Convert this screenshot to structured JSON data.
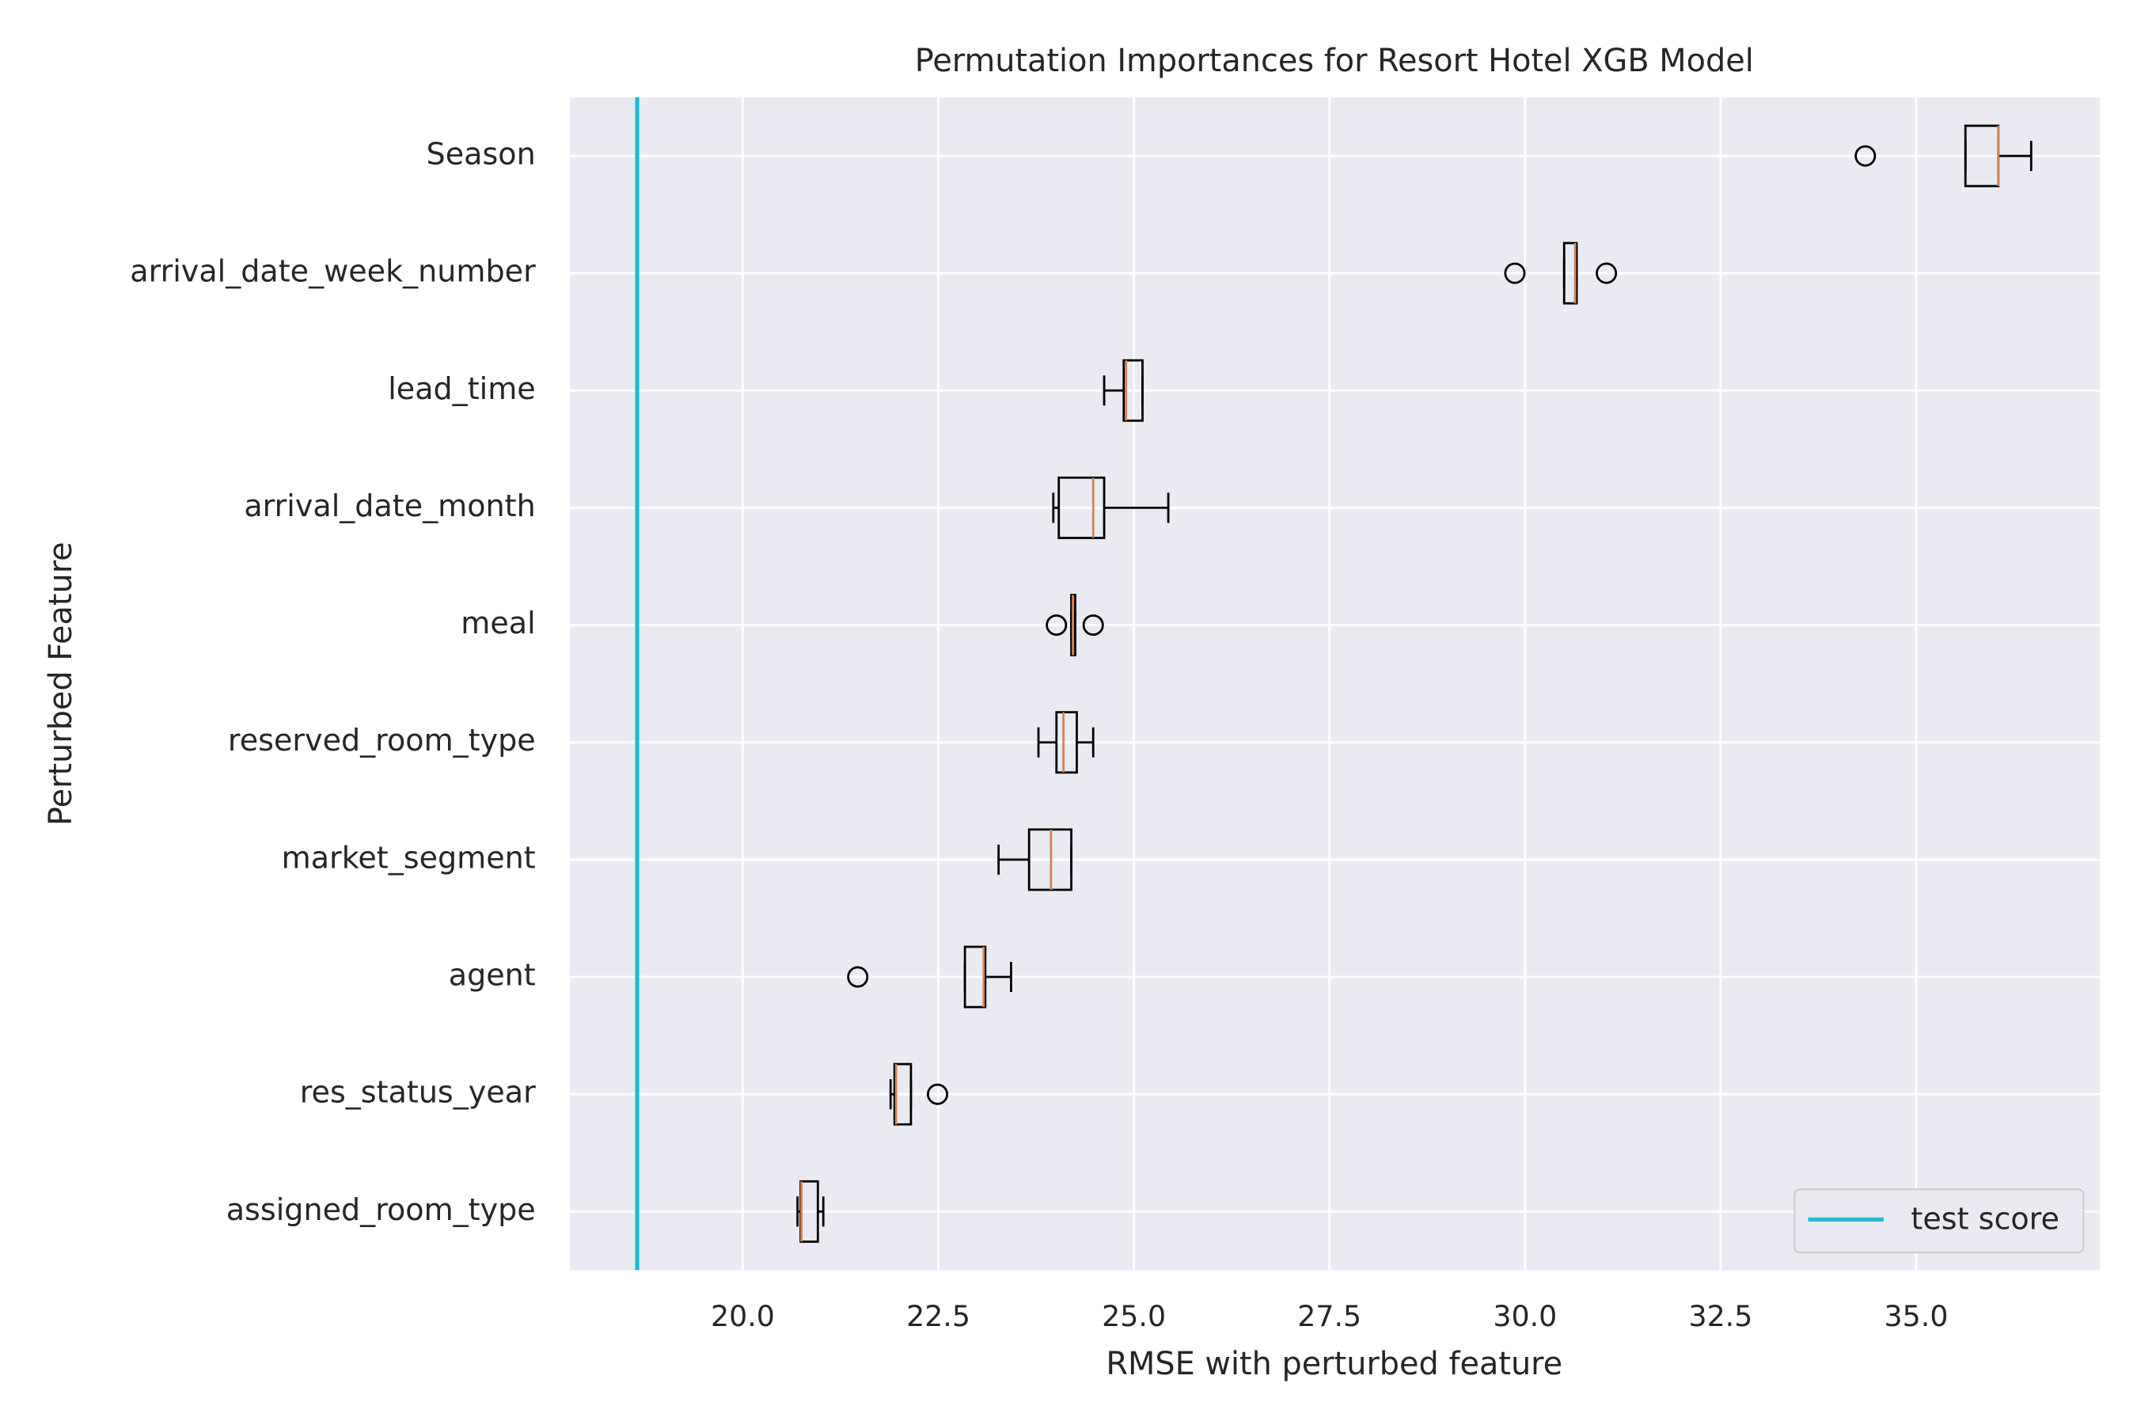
{
  "chart_data": {
    "type": "boxplot",
    "orientation": "horizontal",
    "title": "Permutation Importances for Resort Hotel XGB Model",
    "xlabel": "RMSE with perturbed feature",
    "ylabel": "Perturbed Feature",
    "categories": [
      "Season",
      "arrival_date_week_number",
      "lead_time",
      "arrival_date_month",
      "meal",
      "reserved_room_type",
      "market_segment",
      "agent",
      "res_status_year",
      "assigned_room_type"
    ],
    "boxes": [
      {
        "whislo": 35.63,
        "q1": 35.63,
        "med": 36.05,
        "q3": 36.05,
        "whishi": 36.47,
        "fliers": [
          34.35
        ]
      },
      {
        "whislo": 30.5,
        "q1": 30.5,
        "med": 30.64,
        "q3": 30.66,
        "whishi": 30.66,
        "fliers": [
          29.87,
          31.04
        ]
      },
      {
        "whislo": 24.62,
        "q1": 24.87,
        "med": 24.9,
        "q3": 25.11,
        "whishi": 25.11,
        "fliers": []
      },
      {
        "whislo": 23.97,
        "q1": 24.04,
        "med": 24.48,
        "q3": 24.62,
        "whishi": 25.44,
        "fliers": []
      },
      {
        "whislo": 24.2,
        "q1": 24.2,
        "med": 24.22,
        "q3": 24.25,
        "whishi": 24.25,
        "fliers": [
          24.01,
          24.48
        ]
      },
      {
        "whislo": 23.78,
        "q1": 24.01,
        "med": 24.1,
        "q3": 24.27,
        "whishi": 24.48,
        "fliers": []
      },
      {
        "whislo": 23.27,
        "q1": 23.66,
        "med": 23.94,
        "q3": 24.2,
        "whishi": 24.2,
        "fliers": []
      },
      {
        "whislo": 22.84,
        "q1": 22.84,
        "med": 23.08,
        "q3": 23.1,
        "whishi": 23.43,
        "fliers": [
          21.47
        ]
      },
      {
        "whislo": 21.89,
        "q1": 21.94,
        "med": 21.96,
        "q3": 22.15,
        "whishi": 22.15,
        "fliers": [
          22.49
        ]
      },
      {
        "whislo": 20.7,
        "q1": 20.74,
        "med": 20.75,
        "q3": 20.96,
        "whishi": 21.03,
        "fliers": []
      }
    ],
    "box_color": "#000000",
    "median_color": "#d9824f",
    "reference_lines": [
      {
        "name": "test score",
        "value": 18.65,
        "color": "#1fbcd2"
      }
    ],
    "xlim": [
      17.79,
      37.35
    ],
    "xticks": [
      {
        "value": 20,
        "label": "20.0"
      },
      {
        "value": 22.5,
        "label": "22.5"
      },
      {
        "value": 25,
        "label": "25.0"
      },
      {
        "value": 27.5,
        "label": "27.5"
      },
      {
        "value": 30,
        "label": "30.0"
      },
      {
        "value": 32.5,
        "label": "32.5"
      },
      {
        "value": 35,
        "label": "35.0"
      }
    ],
    "grid": true,
    "legend": "lower right"
  }
}
